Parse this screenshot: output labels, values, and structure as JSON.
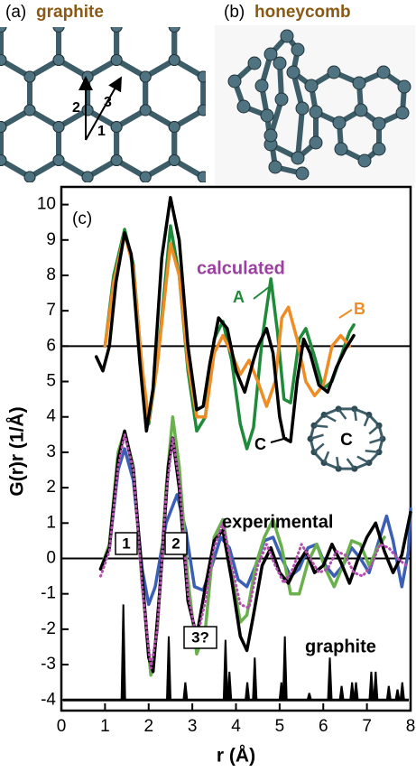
{
  "panel_a": {
    "label": "(a)",
    "title": "graphite",
    "bond_labels": [
      "1",
      "2",
      "3"
    ]
  },
  "panel_b": {
    "label": "(b)",
    "title": "honeycomb"
  },
  "chart_data": {
    "type": "line",
    "panel_label": "(c)",
    "xlabel": "r (Å)",
    "ylabel": "G(r)r (1/Å)",
    "xlim": [
      0,
      8
    ],
    "ylim": [
      -4.3,
      10.5
    ],
    "xticks": [
      0,
      1,
      2,
      3,
      4,
      5,
      6,
      7,
      8
    ],
    "yticks": [
      -4,
      -3,
      -2,
      -1,
      0,
      1,
      2,
      3,
      4,
      5,
      6,
      7,
      8,
      9,
      10
    ],
    "hlines": [
      6,
      0
    ],
    "calculated_label": "calculated",
    "experimental_label": "experimental",
    "inset_label": "C",
    "peak_labels": [
      "1",
      "2",
      "3?"
    ],
    "series": [
      {
        "name": "A",
        "color": "#1f8a3a",
        "dashed": false,
        "x": [
          1.0,
          1.2,
          1.45,
          1.65,
          1.85,
          2.0,
          2.2,
          2.5,
          2.7,
          2.9,
          3.1,
          3.3,
          3.5,
          3.7,
          3.9,
          4.1,
          4.25,
          4.4,
          4.6,
          4.8,
          4.95,
          5.1,
          5.25,
          5.45,
          5.6,
          5.8,
          6.0,
          6.2,
          6.4,
          6.6,
          6.7
        ],
        "values": [
          6.0,
          8.0,
          9.3,
          8.3,
          5.3,
          3.8,
          5.5,
          9.4,
          8.0,
          5.3,
          3.6,
          4.0,
          6.2,
          6.7,
          5.6,
          3.8,
          3.1,
          3.7,
          6.2,
          7.9,
          6.4,
          4.5,
          4.4,
          6.2,
          6.5,
          5.7,
          4.8,
          5.0,
          5.7,
          6.4,
          6.6
        ]
      },
      {
        "name": "B",
        "color": "#f08c24",
        "dashed": false,
        "x": [
          1.0,
          1.2,
          1.45,
          1.65,
          1.85,
          2.0,
          2.2,
          2.5,
          2.7,
          2.9,
          3.1,
          3.3,
          3.5,
          3.7,
          3.9,
          4.1,
          4.3,
          4.5,
          4.7,
          4.9,
          5.05,
          5.2,
          5.4,
          5.6,
          5.8,
          6.0,
          6.2,
          6.4,
          6.6
        ],
        "values": [
          6.0,
          7.8,
          9.2,
          8.2,
          5.4,
          3.9,
          5.5,
          8.9,
          8.0,
          5.5,
          4.0,
          4.0,
          5.8,
          6.3,
          5.8,
          5.2,
          5.6,
          5.0,
          4.3,
          5.0,
          6.8,
          7.1,
          6.2,
          5.0,
          4.6,
          4.9,
          6.0,
          6.3,
          6.0
        ]
      },
      {
        "name": "C",
        "color": "#000000",
        "dashed": false,
        "x": [
          0.8,
          0.95,
          1.1,
          1.25,
          1.45,
          1.6,
          1.8,
          1.95,
          2.1,
          2.3,
          2.5,
          2.7,
          2.9,
          3.1,
          3.25,
          3.4,
          3.6,
          3.8,
          4.0,
          4.2,
          4.4,
          4.5,
          4.7,
          4.85,
          5.0,
          5.1,
          5.25,
          5.4,
          5.55,
          5.7,
          5.9,
          6.1,
          6.3,
          6.5,
          6.7
        ],
        "values": [
          5.7,
          5.3,
          6.0,
          7.8,
          9.2,
          8.6,
          5.5,
          3.6,
          4.8,
          8.5,
          10.2,
          9.0,
          6.0,
          4.2,
          4.3,
          5.5,
          6.8,
          6.5,
          5.3,
          4.7,
          5.6,
          6.0,
          6.5,
          5.8,
          4.0,
          3.4,
          3.3,
          5.0,
          6.2,
          5.8,
          4.9,
          4.7,
          5.4,
          5.9,
          6.3
        ]
      },
      {
        "color": "#3b5fb5",
        "dashed": false,
        "x": [
          0.9,
          1.1,
          1.3,
          1.45,
          1.65,
          1.85,
          2.0,
          2.15,
          2.4,
          2.65,
          2.85,
          3.05,
          3.25,
          3.45,
          3.65,
          3.85,
          4.05,
          4.25,
          4.45,
          4.65,
          4.85,
          5.05,
          5.25,
          5.45,
          5.65,
          5.85,
          6.05,
          6.25,
          6.45,
          6.65,
          6.85,
          7.05,
          7.25,
          7.45,
          7.6,
          7.8,
          7.95,
          8.0
        ],
        "values": [
          -0.3,
          0.3,
          2.5,
          3.1,
          2.2,
          -0.3,
          -1.3,
          -0.8,
          1.0,
          1.8,
          0.8,
          -0.8,
          -0.9,
          -0.2,
          0.6,
          0.3,
          -0.6,
          -0.8,
          -0.2,
          0.5,
          0.6,
          0.0,
          -0.5,
          -0.3,
          0.3,
          0.4,
          -0.2,
          -0.5,
          -0.2,
          0.3,
          0.0,
          -0.4,
          0.4,
          1.2,
          0.5,
          -0.8,
          0.2,
          1.4
        ]
      },
      {
        "color": "#6ab04c",
        "dashed": false,
        "x": [
          0.9,
          1.1,
          1.3,
          1.45,
          1.65,
          1.85,
          2.05,
          2.2,
          2.4,
          2.55,
          2.7,
          2.9,
          3.1,
          3.3,
          3.5,
          3.7,
          3.9,
          4.1,
          4.25,
          4.45,
          4.65,
          4.85,
          5.05,
          5.25,
          5.45,
          5.65,
          5.85,
          6.05,
          6.25,
          6.45,
          6.65,
          6.85,
          7.05,
          7.25,
          7.4
        ],
        "values": [
          -0.3,
          0.4,
          3.0,
          3.6,
          2.6,
          -0.7,
          -3.3,
          -2.0,
          2.0,
          4.0,
          2.6,
          -0.6,
          -2.7,
          -2.0,
          0.6,
          1.1,
          -0.4,
          -1.8,
          -1.6,
          -0.2,
          0.6,
          1.1,
          0.3,
          -1.0,
          -1.0,
          -0.1,
          0.4,
          -0.3,
          -0.8,
          -0.2,
          0.5,
          0.4,
          -0.2,
          0.3,
          0.6
        ]
      },
      {
        "color": "#000000",
        "dashed": false,
        "x": [
          0.9,
          1.1,
          1.3,
          1.45,
          1.65,
          1.85,
          2.0,
          2.1,
          2.25,
          2.45,
          2.55,
          2.7,
          2.9,
          3.1,
          3.3,
          3.5,
          3.7,
          3.9,
          4.1,
          4.25,
          4.4,
          4.6,
          4.8,
          5.0,
          5.2,
          5.4,
          5.6,
          5.8,
          6.0,
          6.2,
          6.4,
          6.6,
          6.8,
          7.0,
          7.2,
          7.4,
          7.6,
          7.8,
          8.0
        ],
        "values": [
          -0.3,
          0.3,
          2.8,
          3.6,
          2.5,
          -0.5,
          -2.8,
          -3.2,
          -1.0,
          2.6,
          3.4,
          2.0,
          -1.2,
          -2.2,
          -0.8,
          0.5,
          0.8,
          -0.6,
          -2.2,
          -2.6,
          -1.6,
          -0.2,
          0.3,
          -0.4,
          -0.7,
          -0.2,
          0.2,
          -0.4,
          -0.2,
          0.4,
          -0.1,
          -0.7,
          0.0,
          0.6,
          1.0,
          0.2,
          -0.4,
          0.1,
          1.3
        ]
      },
      {
        "color": "#b44fb0",
        "dashed": true,
        "x": [
          0.9,
          1.1,
          1.3,
          1.45,
          1.65,
          1.85,
          2.05,
          2.2,
          2.4,
          2.55,
          2.7,
          2.9,
          3.1,
          3.3,
          3.5,
          3.7,
          3.9,
          4.1,
          4.3,
          4.5,
          4.7,
          4.9,
          5.1,
          5.3,
          5.5,
          5.7,
          5.9,
          6.1,
          6.3,
          6.5,
          6.7,
          6.9,
          7.1,
          7.3,
          7.5,
          7.7,
          7.9
        ],
        "values": [
          -0.5,
          0.2,
          2.6,
          3.5,
          2.5,
          -0.8,
          -3.1,
          -2.0,
          1.8,
          3.4,
          2.2,
          -1.0,
          -2.3,
          -1.2,
          0.3,
          1.0,
          -0.2,
          -1.3,
          -1.4,
          -0.2,
          0.4,
          -0.2,
          -0.7,
          -0.3,
          0.4,
          0.0,
          -0.4,
          -0.3,
          0.2,
          0.1,
          -0.4,
          -0.5,
          -0.2,
          0.4,
          0.3,
          0.0,
          -0.2
        ]
      }
    ],
    "graphite": {
      "name": "graphite",
      "color": "#000000",
      "baseline": -4,
      "x": [
        1.42,
        2.46,
        2.84,
        3.76,
        3.85,
        4.26,
        4.43,
        5.04,
        5.12,
        5.68,
        6.15,
        6.42,
        6.66,
        6.75,
        7.1,
        7.2,
        7.5,
        7.7,
        7.81
      ],
      "values": [
        -1.3,
        -2.2,
        -3.5,
        -2.3,
        -3.2,
        -3.5,
        -2.8,
        -3.5,
        -2.2,
        -3.8,
        -2.8,
        -3.6,
        -3.5,
        -3.5,
        -3.2,
        -3.2,
        -3.6,
        -3.7,
        -3.5
      ]
    }
  }
}
